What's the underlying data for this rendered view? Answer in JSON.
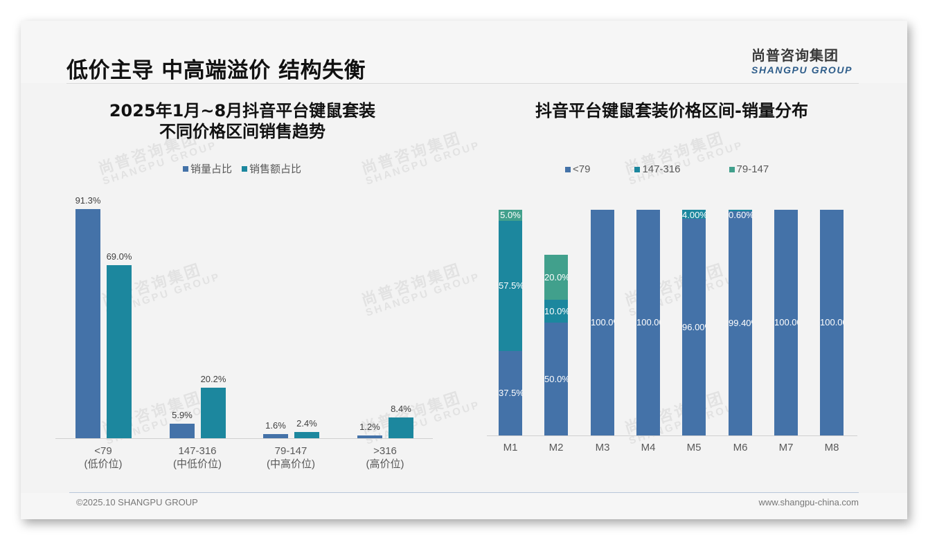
{
  "header": {
    "title": "低价主导 中高端溢价 结构失衡",
    "logo_cn": "尚普咨询集团",
    "logo_en": "SHANGPU GROUP"
  },
  "watermark": {
    "cn": "尚普咨询集团",
    "en": "SHANGPU GROUP"
  },
  "colors": {
    "blue": "#4472a8",
    "teal": "#1c879e",
    "green": "#41a08c",
    "background": "#f3f3f3"
  },
  "left_chart": {
    "title_line1": "2025年1月~8月抖音平台键鼠套装",
    "title_line2": "不同价格区间销售趋势",
    "legend": [
      "销量占比",
      "销售额占比"
    ]
  },
  "right_chart": {
    "title": "抖音平台键鼠套装价格区间-销量分布",
    "legend": [
      "<79",
      "147-316",
      "79-147"
    ]
  },
  "footer": {
    "left": "©2025.10 SHANGPU GROUP",
    "right": "www.shangpu-china.com"
  },
  "chart_data": [
    {
      "type": "bar",
      "title": "2025年1月~8月抖音平台键鼠套装不同价格区间销售趋势",
      "categories": [
        "<79",
        "147-316",
        "79-147",
        ">316"
      ],
      "category_sublabels": [
        "(低价位)",
        "(中低价位)",
        "(中高价位)",
        "(高价位)"
      ],
      "series": [
        {
          "name": "销量占比",
          "values": [
            91.3,
            5.9,
            1.6,
            1.2
          ],
          "labels": [
            "91.3%",
            "5.9%",
            "1.6%",
            "1.2%"
          ],
          "color": "#4472a8"
        },
        {
          "name": "销售额占比",
          "values": [
            69.0,
            20.2,
            2.4,
            8.4
          ],
          "labels": [
            "69.0%",
            "20.2%",
            "2.4%",
            "8.4%"
          ],
          "color": "#1c879e"
        }
      ],
      "xlabel": "",
      "ylabel": "",
      "unit": "%",
      "grid": false,
      "legend_position": "top"
    },
    {
      "type": "bar",
      "stacked": true,
      "title": "抖音平台键鼠套装价格区间-销量分布",
      "categories": [
        "M1",
        "M2",
        "M3",
        "M4",
        "M5",
        "M6",
        "M7",
        "M8"
      ],
      "series": [
        {
          "name": "<79",
          "values": [
            37.5,
            50.0,
            100.0,
            100.0,
            96.0,
            99.4,
            100.0,
            100.0
          ],
          "labels": [
            "37.5%",
            "50.0%",
            "100.0%",
            "100.00%",
            "96.00%",
            "99.40%",
            "100.00%",
            "100.00%"
          ],
          "color": "#4472a8"
        },
        {
          "name": "147-316",
          "values": [
            57.5,
            10.0,
            0,
            0,
            4.0,
            0.6,
            0,
            0
          ],
          "labels": [
            "57.5%",
            "10.0%",
            "",
            "",
            "4.00%",
            "0.60%",
            "",
            ""
          ],
          "color": "#1c879e"
        },
        {
          "name": "79-147",
          "values": [
            5.0,
            20.0,
            0,
            0,
            0,
            0,
            0,
            0
          ],
          "labels": [
            "5.0%",
            "20.0%",
            "",
            "",
            "",
            "",
            "",
            ""
          ],
          "color": "#41a08c"
        }
      ],
      "xlabel": "",
      "ylabel": "",
      "unit": "%",
      "ylim": [
        0,
        100
      ],
      "grid": false,
      "legend_position": "top"
    }
  ]
}
